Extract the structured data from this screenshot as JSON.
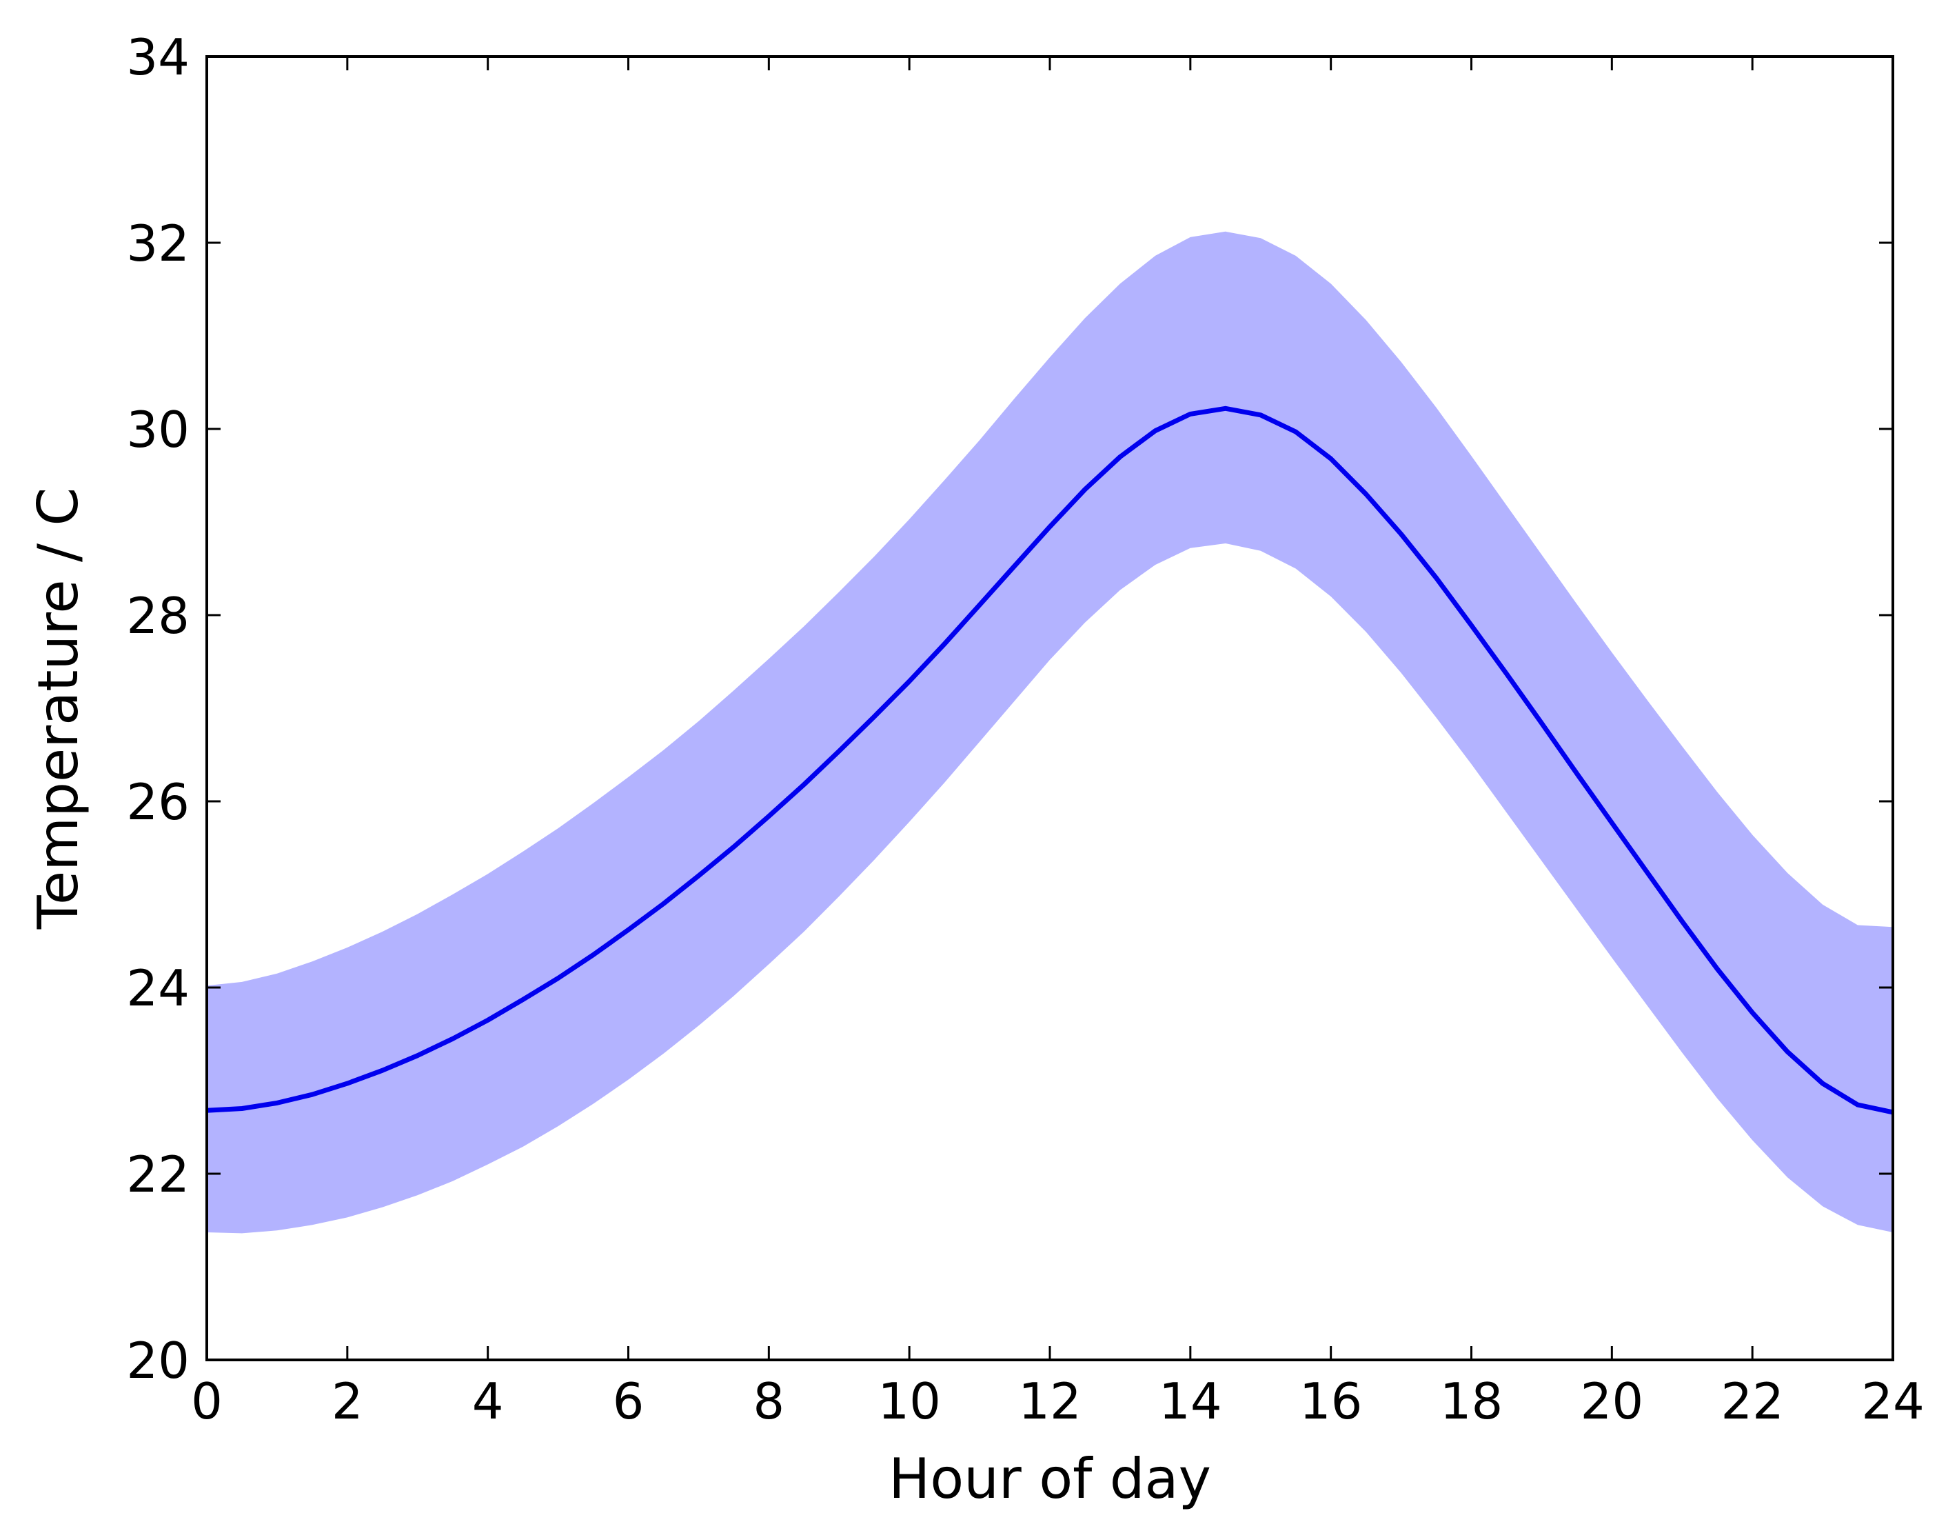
{
  "chart_data": {
    "type": "area",
    "xlabel": "Hour of day",
    "ylabel": "Temperature / C",
    "xlim": [
      0,
      24
    ],
    "ylim": [
      20,
      34
    ],
    "xticks": [
      0,
      2,
      4,
      6,
      8,
      10,
      12,
      14,
      16,
      18,
      20,
      22,
      24
    ],
    "yticks": [
      20,
      22,
      24,
      26,
      28,
      30,
      32,
      34
    ],
    "grid": false,
    "x": [
      0,
      0.5,
      1,
      1.5,
      2,
      2.5,
      3,
      3.5,
      4,
      4.5,
      5,
      5.5,
      6,
      6.5,
      7,
      7.5,
      8,
      8.5,
      9,
      9.5,
      10,
      10.5,
      11,
      11.5,
      12,
      12.5,
      13,
      13.5,
      14,
      14.5,
      15,
      15.5,
      16,
      16.5,
      17,
      17.5,
      18,
      18.5,
      19,
      19.5,
      20,
      20.5,
      21,
      21.5,
      22,
      22.5,
      23,
      23.5,
      24
    ],
    "series": [
      {
        "values": [
          22.68,
          22.7,
          22.76,
          22.85,
          22.97,
          23.11,
          23.27,
          23.45,
          23.65,
          23.87,
          24.1,
          24.35,
          24.62,
          24.9,
          25.2,
          25.51,
          25.84,
          26.18,
          26.54,
          26.91,
          27.29,
          27.69,
          28.11,
          28.53,
          28.95,
          29.35,
          29.7,
          29.98,
          30.16,
          30.22,
          30.15,
          29.97,
          29.68,
          29.3,
          28.87,
          28.4,
          27.89,
          27.37,
          26.84,
          26.3,
          25.77,
          25.24,
          24.71,
          24.2,
          23.73,
          23.31,
          22.97,
          22.74,
          22.66
        ],
        "lower": [
          21.37,
          21.36,
          21.39,
          21.45,
          21.53,
          21.64,
          21.77,
          21.92,
          22.1,
          22.29,
          22.51,
          22.75,
          23.01,
          23.29,
          23.59,
          23.91,
          24.25,
          24.6,
          24.98,
          25.37,
          25.78,
          26.2,
          26.64,
          27.08,
          27.52,
          27.92,
          28.27,
          28.54,
          28.72,
          28.77,
          28.69,
          28.5,
          28.2,
          27.82,
          27.38,
          26.9,
          26.4,
          25.88,
          25.36,
          24.84,
          24.32,
          23.81,
          23.3,
          22.81,
          22.36,
          21.96,
          21.65,
          21.45,
          21.37
        ],
        "upper": [
          24.02,
          24.06,
          24.15,
          24.28,
          24.43,
          24.6,
          24.79,
          25.0,
          25.22,
          25.46,
          25.71,
          25.98,
          26.26,
          26.55,
          26.86,
          27.19,
          27.53,
          27.88,
          28.25,
          28.63,
          29.03,
          29.45,
          29.88,
          30.33,
          30.77,
          31.19,
          31.56,
          31.86,
          32.06,
          32.12,
          32.05,
          31.86,
          31.56,
          31.17,
          30.72,
          30.23,
          29.71,
          29.18,
          28.65,
          28.12,
          27.6,
          27.09,
          26.59,
          26.1,
          25.64,
          25.23,
          24.89,
          24.67,
          24.65
        ],
        "line_color": "#0000ee",
        "band_color": "#b3b3ff"
      }
    ]
  }
}
